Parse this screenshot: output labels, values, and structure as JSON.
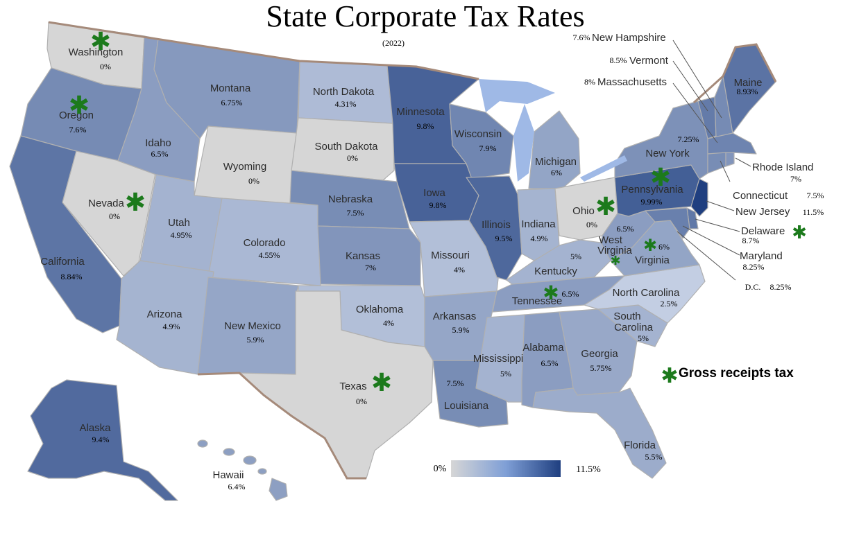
{
  "title": "State Corporate Tax Rates",
  "subtitle": "(2022)",
  "colors": {
    "zero": "#d6d6d6",
    "scale_low": "#d3dcec",
    "scale_high": "#1f3f80",
    "border": "#a58a7a",
    "star": "#1c7a1c"
  },
  "legend": {
    "min_label": "0%",
    "max_label": "11.5%",
    "min": 0,
    "max": 11.5
  },
  "gross_receipts_label": "Gross receipts tax",
  "states": {
    "WA": {
      "name": "Washington",
      "rate": "0%",
      "value": 0,
      "gross_receipts": true
    },
    "OR": {
      "name": "Oregon",
      "rate": "7.6%",
      "value": 7.6,
      "gross_receipts": true
    },
    "CA": {
      "name": "California",
      "rate": "8.84%",
      "value": 8.84
    },
    "NV": {
      "name": "Nevada",
      "rate": "0%",
      "value": 0,
      "gross_receipts": true
    },
    "ID": {
      "name": "Idaho",
      "rate": "6.5%",
      "value": 6.5
    },
    "MT": {
      "name": "Montana",
      "rate": "6.75%",
      "value": 6.75
    },
    "WY": {
      "name": "Wyoming",
      "rate": "0%",
      "value": 0
    },
    "UT": {
      "name": "Utah",
      "rate": "4.95%",
      "value": 4.95
    },
    "CO": {
      "name": "Colorado",
      "rate": "4.55%",
      "value": 4.55
    },
    "AZ": {
      "name": "Arizona",
      "rate": "4.9%",
      "value": 4.9
    },
    "NM": {
      "name": "New Mexico",
      "rate": "5.9%",
      "value": 5.9
    },
    "ND": {
      "name": "North Dakota",
      "rate": "4.31%",
      "value": 4.31
    },
    "SD": {
      "name": "South Dakota",
      "rate": "0%",
      "value": 0
    },
    "NE": {
      "name": "Nebraska",
      "rate": "7.5%",
      "value": 7.5
    },
    "KS": {
      "name": "Kansas",
      "rate": "7%",
      "value": 7
    },
    "OK": {
      "name": "Oklahoma",
      "rate": "4%",
      "value": 4
    },
    "TX": {
      "name": "Texas",
      "rate": "0%",
      "value": 0,
      "gross_receipts": true
    },
    "MN": {
      "name": "Minnesota",
      "rate": "9.8%",
      "value": 9.8
    },
    "IA": {
      "name": "Iowa",
      "rate": "9.8%",
      "value": 9.8
    },
    "MO": {
      "name": "Missouri",
      "rate": "4%",
      "value": 4
    },
    "AR": {
      "name": "Arkansas",
      "rate": "5.9%",
      "value": 5.9
    },
    "LA": {
      "name": "Louisiana",
      "rate": "7.5%",
      "value": 7.5
    },
    "WI": {
      "name": "Wisconsin",
      "rate": "7.9%",
      "value": 7.9
    },
    "IL": {
      "name": "Illinois",
      "rate": "9.5%",
      "value": 9.5
    },
    "MI": {
      "name": "Michigan",
      "rate": "6%",
      "value": 6
    },
    "IN": {
      "name": "Indiana",
      "rate": "4.9%",
      "value": 4.9
    },
    "OH": {
      "name": "Ohio",
      "rate": "0%",
      "value": 0,
      "gross_receipts": true
    },
    "KY": {
      "name": "Kentucky",
      "rate": "5%",
      "value": 5
    },
    "TN": {
      "name": "Tennessee",
      "rate": "6.5%",
      "value": 6.5,
      "gross_receipts": true
    },
    "MS": {
      "name": "Mississippi",
      "rate": "5%",
      "value": 5
    },
    "AL": {
      "name": "Alabama",
      "rate": "6.5%",
      "value": 6.5
    },
    "GA": {
      "name": "Georgia",
      "rate": "5.75%",
      "value": 5.75
    },
    "FL": {
      "name": "Florida",
      "rate": "5.5%",
      "value": 5.5
    },
    "SC": {
      "name": "South Carolina",
      "name_line1": "South",
      "name_line2": "Carolina",
      "rate": "5%",
      "value": 5
    },
    "NC": {
      "name": "North Carolina",
      "rate": "2.5%",
      "value": 2.5
    },
    "VA": {
      "name": "Virginia",
      "rate": "6%",
      "value": 6,
      "gross_receipts": true
    },
    "WV": {
      "name": "West Virginia",
      "name_line1": "West",
      "name_line2": "Virginia",
      "rate": "6.5%",
      "value": 6.5,
      "gross_receipts": true
    },
    "PA": {
      "name": "Pennsylvania",
      "rate": "9.99%",
      "value": 9.99,
      "gross_receipts": true
    },
    "NY": {
      "name": "New York",
      "rate": "7.25%",
      "value": 7.25
    },
    "ME": {
      "name": "Maine",
      "rate": "8.93%",
      "value": 8.93
    },
    "NH": {
      "name": "New Hampshire",
      "rate": "7.6%",
      "value": 7.6
    },
    "VT": {
      "name": "Vermont",
      "rate": "8.5%",
      "value": 8.5
    },
    "MA": {
      "name": "Massachusetts",
      "rate": "8%",
      "value": 8
    },
    "RI": {
      "name": "Rhode Island",
      "rate": "7%",
      "value": 7
    },
    "CT": {
      "name": "Connecticut",
      "rate": "7.5%",
      "value": 7.5
    },
    "NJ": {
      "name": "New Jersey",
      "rate": "11.5%",
      "value": 11.5
    },
    "DE": {
      "name": "Delaware",
      "rate": "8.7%",
      "value": 8.7,
      "gross_receipts": true
    },
    "MD": {
      "name": "Maryland",
      "rate": "8.25%",
      "value": 8.25
    },
    "DC": {
      "name": "D.C.",
      "rate": "8.25%",
      "value": 8.25
    },
    "AK": {
      "name": "Alaska",
      "rate": "9.4%",
      "value": 9.4
    },
    "HI": {
      "name": "Hawaii",
      "rate": "6.4%",
      "value": 6.4
    }
  }
}
